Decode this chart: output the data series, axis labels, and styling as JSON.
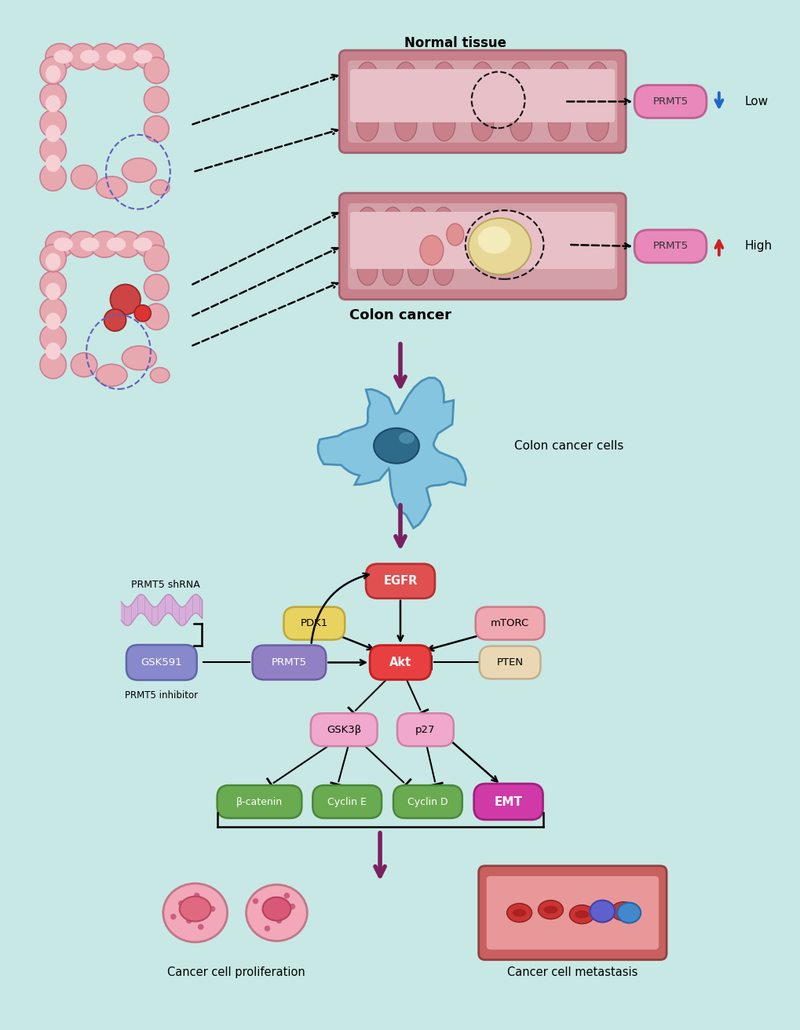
{
  "bg_color": "#c8e8e5",
  "normal_tissue_label": "Normal tissue",
  "colon_cancer_label": "Colon cancer",
  "colon_cancer_cells_label": "Colon cancer cells",
  "prmt5_low_label": "Low",
  "prmt5_high_label": "High",
  "arrow_purple": "#7a2060",
  "cancer_cell_prolif_label": "Cancer cell proliferation",
  "cancer_cell_meta_label": "Cancer cell metastasis",
  "node_labels": {
    "EGFR": "EGFR",
    "Akt": "Akt",
    "PRMT5": "PRMT5",
    "PDK1": "PDK1",
    "mTORC": "mTORC",
    "PTEN": "PTEN",
    "GSK3b": "GSK3β",
    "p27": "p27",
    "beta_catenin": "β-catenin",
    "Cyclin_E": "Cyclin E",
    "Cyclin_D": "Cyclin D",
    "EMT": "EMT",
    "GSK591": "GSK591",
    "PRMT5_shRNA": "PRMT5 shRNA",
    "PRMT5_inhibitor": "PRMT5 inhibitor"
  }
}
